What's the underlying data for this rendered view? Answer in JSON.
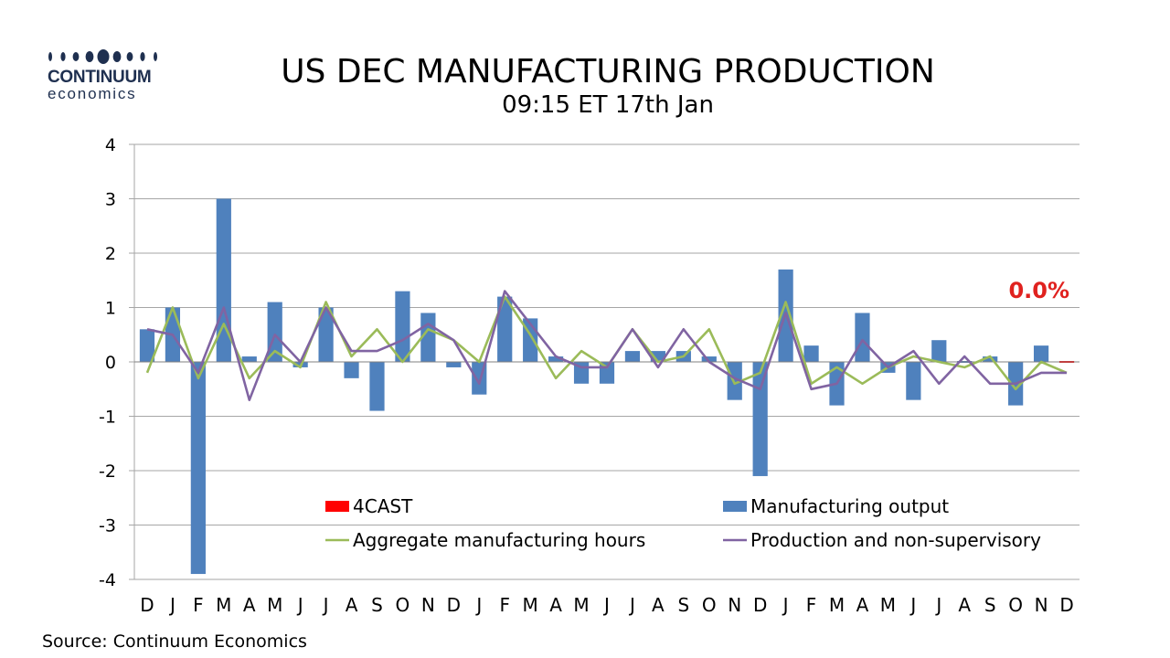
{
  "logo": {
    "name": "CONTINUUM",
    "sub": "economics"
  },
  "title": "US DEC MANUFACTURING PRODUCTION",
  "subtitle": "09:15 ET 17th Jan",
  "source": "Source: Continuum Economics",
  "colors": {
    "bars": "#4f81bd",
    "forecast": "#ff0000",
    "hours": "#9bbb59",
    "production": "#8064a2",
    "callout": "#e0221f",
    "grid": "#a6a6a6",
    "logo": "#1f3050"
  },
  "chart_data": {
    "type": "bar",
    "categories": [
      "D",
      "J",
      "F",
      "M",
      "A",
      "M",
      "J",
      "J",
      "A",
      "S",
      "O",
      "N",
      "D",
      "J",
      "F",
      "M",
      "A",
      "M",
      "J",
      "J",
      "A",
      "S",
      "O",
      "N",
      "D",
      "J",
      "F",
      "M",
      "A",
      "M",
      "J",
      "J",
      "A",
      "S",
      "O",
      "N",
      "D"
    ],
    "ylim": [
      -4,
      4
    ],
    "yticks": [
      -4,
      -3,
      -2,
      -1,
      0,
      1,
      2,
      3,
      4
    ],
    "grid": true,
    "legend_position": "lower-right",
    "series": [
      {
        "name": "4CAST",
        "type": "bar",
        "values": [
          null,
          null,
          null,
          null,
          null,
          null,
          null,
          null,
          null,
          null,
          null,
          null,
          null,
          null,
          null,
          null,
          null,
          null,
          null,
          null,
          null,
          null,
          null,
          null,
          null,
          null,
          null,
          null,
          null,
          null,
          null,
          null,
          null,
          null,
          null,
          null,
          0.0
        ]
      },
      {
        "name": "Manufacturing output",
        "type": "bar",
        "values": [
          0.6,
          1.0,
          -3.9,
          3.0,
          0.1,
          1.1,
          -0.1,
          1.0,
          -0.3,
          -0.9,
          1.3,
          0.9,
          -0.1,
          -0.6,
          1.2,
          0.8,
          0.1,
          -0.4,
          -0.4,
          0.2,
          0.2,
          0.2,
          0.1,
          -0.7,
          -2.1,
          1.7,
          0.3,
          -0.8,
          0.9,
          -0.2,
          -0.7,
          0.4,
          0.0,
          0.1,
          -0.8,
          0.3,
          null
        ]
      },
      {
        "name": "Aggregate manufacturing hours",
        "type": "line",
        "values": [
          -0.2,
          1.0,
          -0.3,
          0.7,
          -0.3,
          0.2,
          -0.1,
          1.1,
          0.1,
          0.6,
          0.0,
          0.6,
          0.4,
          0.0,
          1.2,
          0.5,
          -0.3,
          0.2,
          -0.1,
          0.6,
          0.0,
          0.1,
          0.6,
          -0.4,
          -0.2,
          1.1,
          -0.4,
          -0.1,
          -0.4,
          -0.1,
          0.1,
          0.0,
          -0.1,
          0.1,
          -0.5,
          0.0,
          -0.2
        ]
      },
      {
        "name": "Production and non-supervisory",
        "type": "line",
        "values": [
          0.6,
          0.5,
          -0.2,
          1.0,
          -0.7,
          0.5,
          0.0,
          1.0,
          0.2,
          0.2,
          0.4,
          0.7,
          0.4,
          -0.4,
          1.3,
          0.7,
          0.1,
          -0.1,
          -0.1,
          0.6,
          -0.1,
          0.6,
          0.0,
          -0.3,
          -0.5,
          0.9,
          -0.5,
          -0.4,
          0.4,
          -0.1,
          0.2,
          -0.4,
          0.1,
          -0.4,
          -0.4,
          -0.2,
          -0.2
        ]
      }
    ],
    "annotations": [
      {
        "text": "0.0%",
        "category_index": 36,
        "value": 0.0
      }
    ]
  }
}
